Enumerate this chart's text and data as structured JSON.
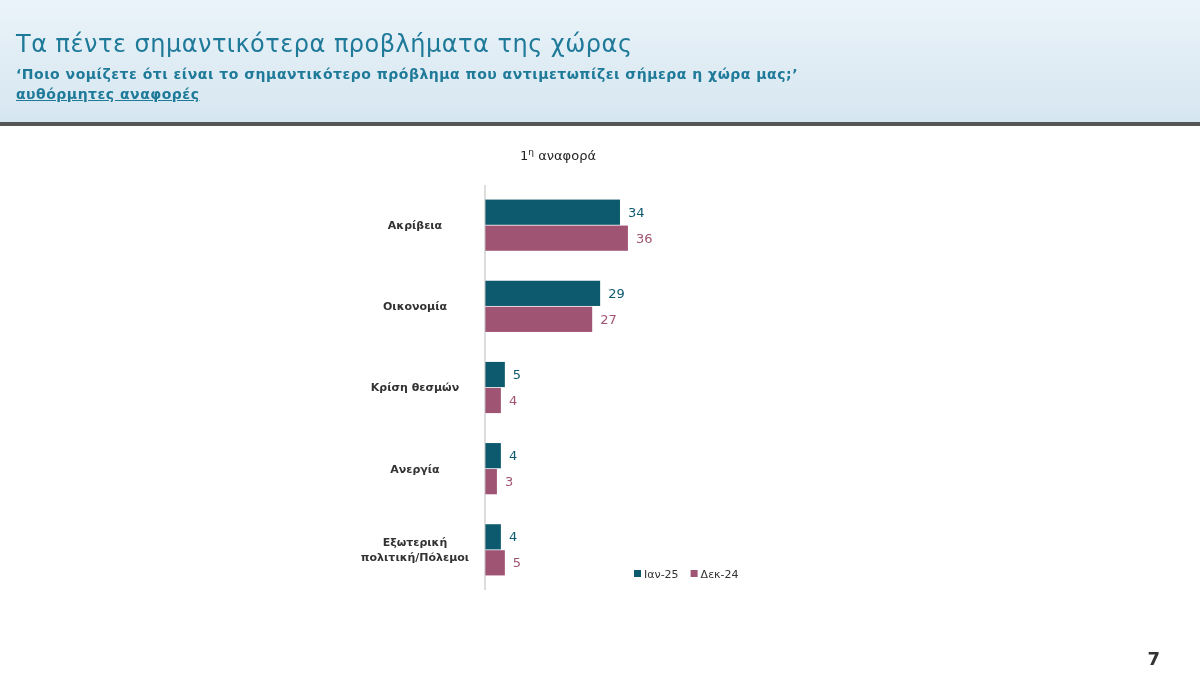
{
  "chart_data": {
    "type": "bar",
    "orientation": "horizontal",
    "title": "Τα πέντε σημαντικότερα προβλήματα της χώρας",
    "subtitle": "‘Ποιο νομίζετε ότι είναι το σημαντικότερο πρόβλημα που αντιμετωπίζει σήμερα η χώρα μας;’",
    "annotations": [
      "αυθόρμητες αναφορές",
      "1$^{η}$ αναφορά",
      "7"
    ],
    "categories": [
      "Ακρίβεια",
      "Οικονομία",
      "Κρίση θεσμών",
      "Ανεργία",
      "Εξωτερική πολιτική/Πόλεμοι"
    ],
    "series": [
      {
        "name": "Ιαν-25",
        "color": "#0d5a6e",
        "values": [
          34,
          29,
          5,
          4,
          4
        ]
      },
      {
        "name": "Δεκ-24",
        "color": "#a05474",
        "values": [
          36,
          27,
          4,
          3,
          5
        ]
      }
    ],
    "data_labels": true,
    "legend": "bottom right"
  }
}
